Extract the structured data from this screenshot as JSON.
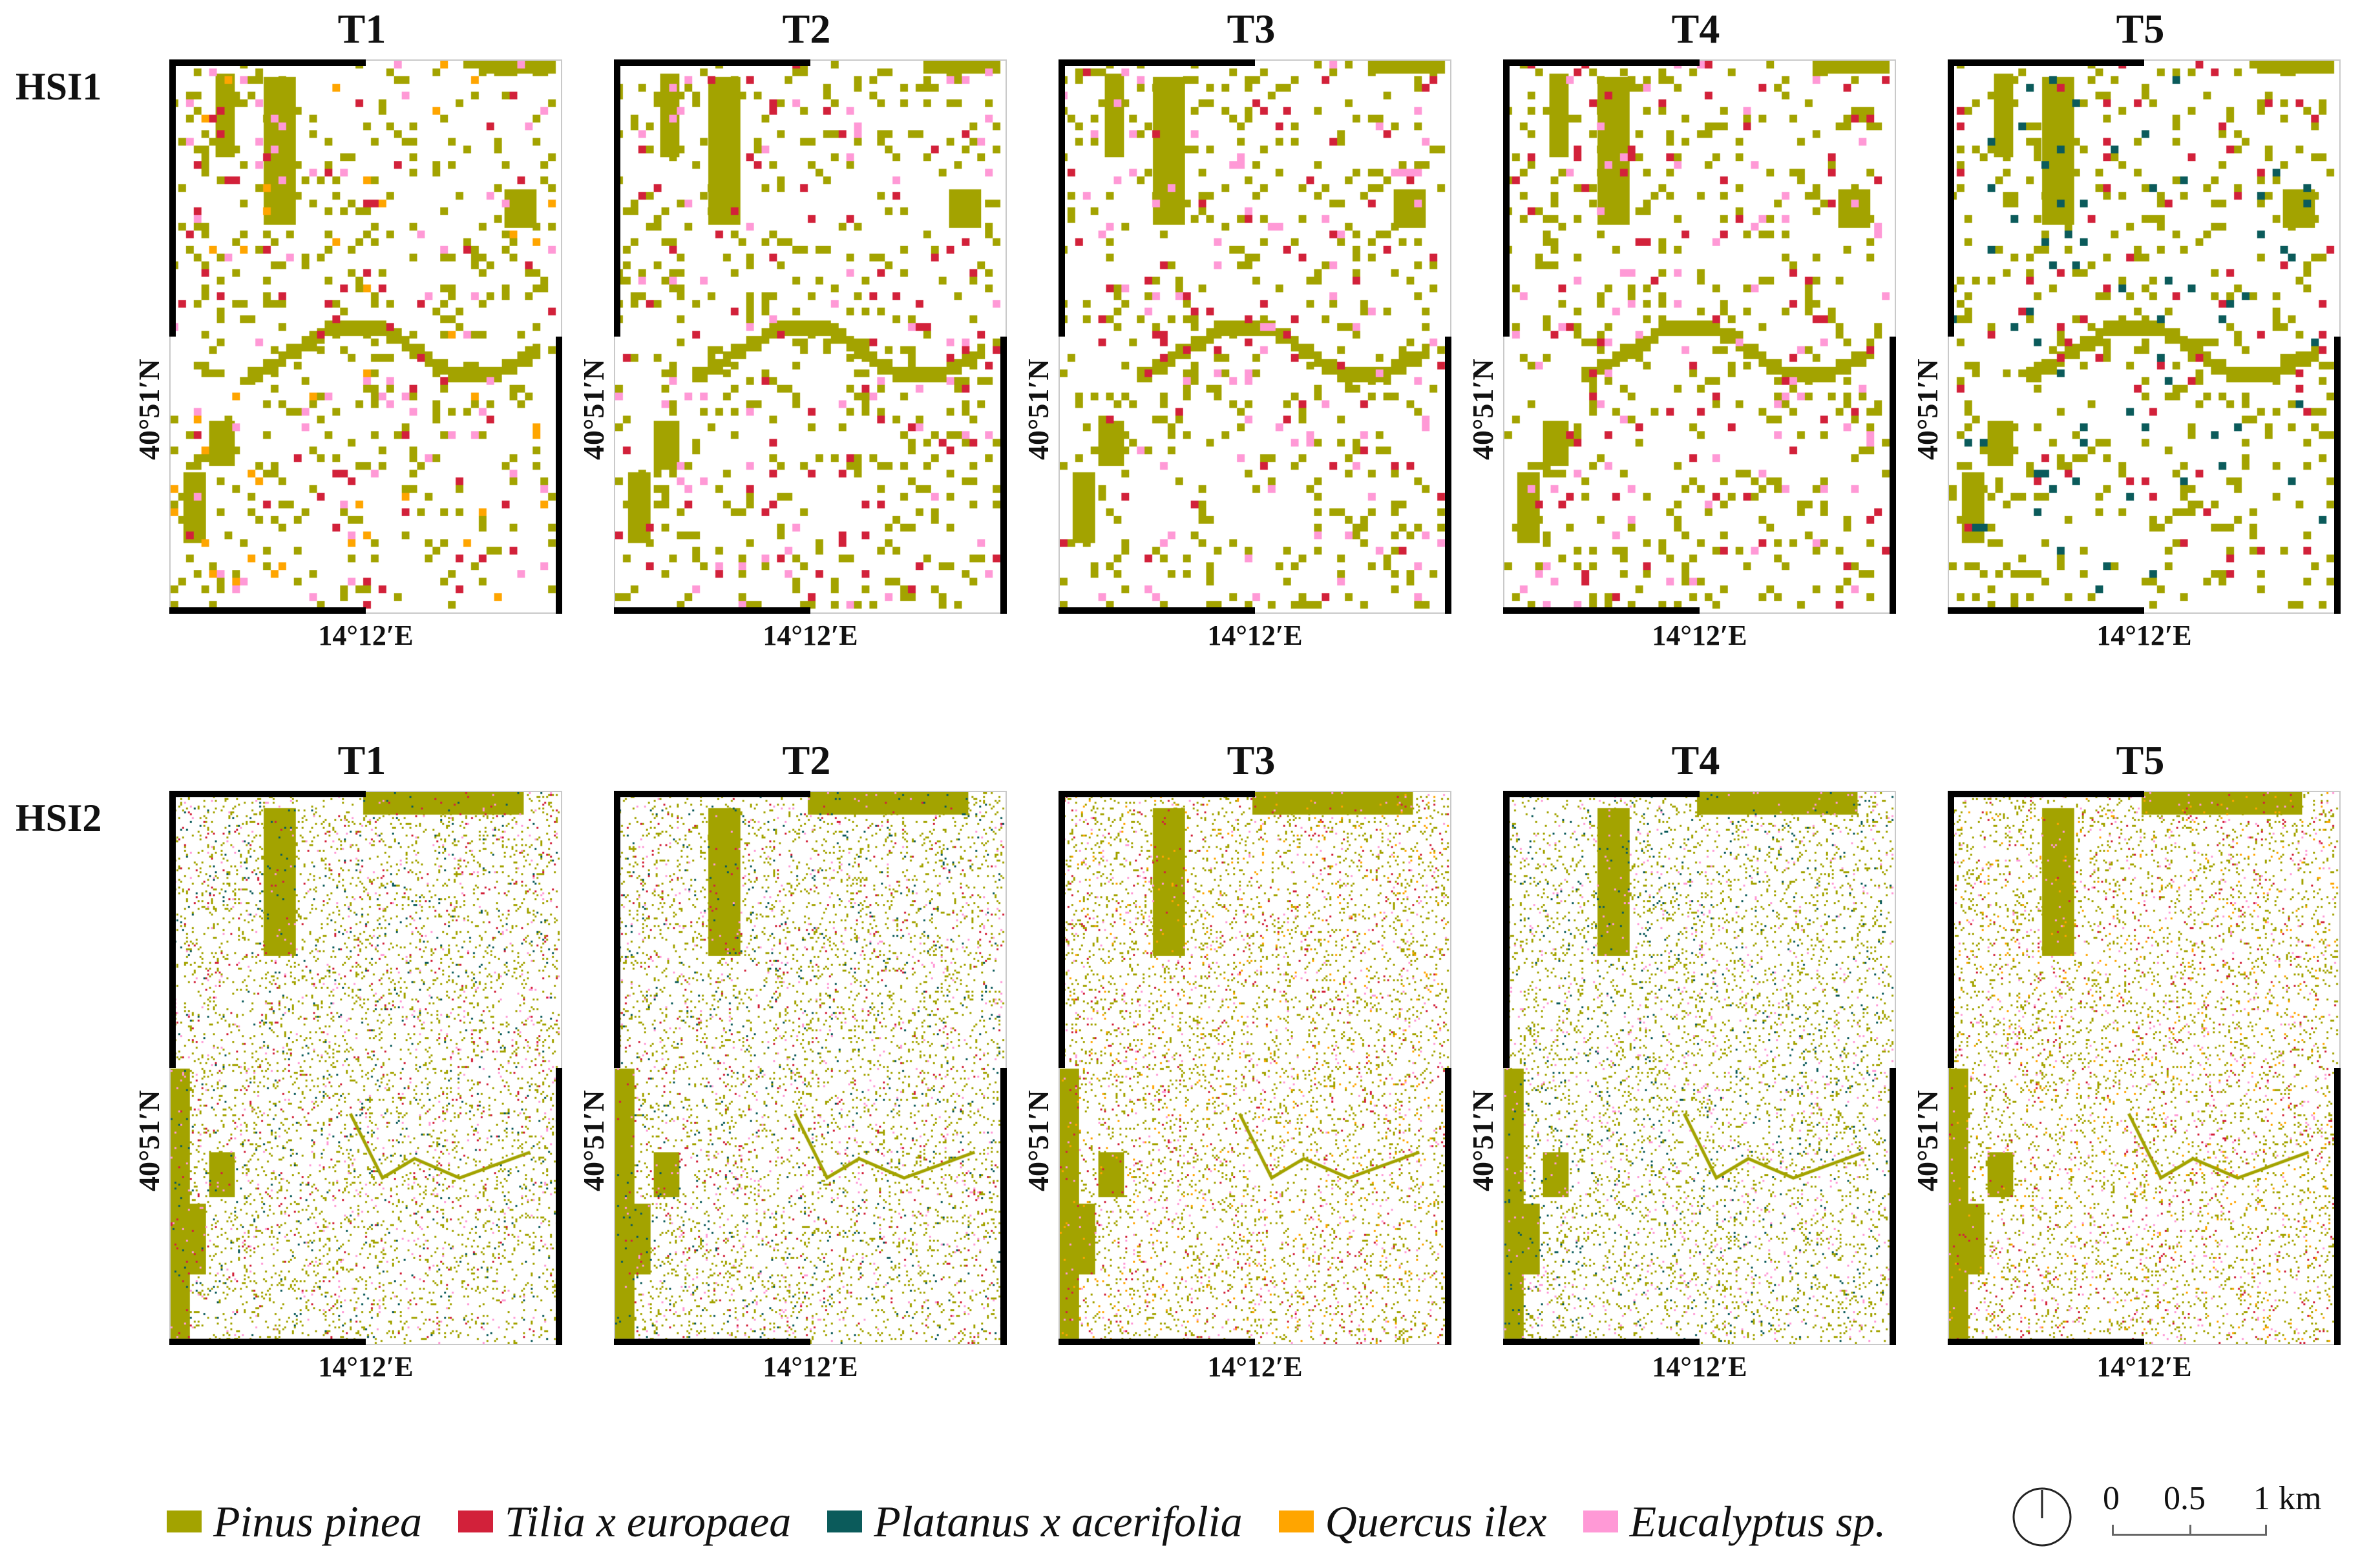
{
  "figure": {
    "rows": [
      {
        "label": "HSI1",
        "style": "coarse"
      },
      {
        "label": "HSI2",
        "style": "fine"
      }
    ],
    "columns": [
      "T1",
      "T2",
      "T3",
      "T4",
      "T5"
    ],
    "latitude_label": "40°51′N",
    "longitude_label": "14°12′E",
    "panels": [
      {
        "row": "HSI1",
        "col": "T1",
        "dominant": [
          "Pinus pinea",
          "Tilia x europaea",
          "Quercus ilex",
          "Eucalyptus sp."
        ]
      },
      {
        "row": "HSI1",
        "col": "T2",
        "dominant": [
          "Pinus pinea",
          "Tilia x europaea",
          "Eucalyptus sp."
        ]
      },
      {
        "row": "HSI1",
        "col": "T3",
        "dominant": [
          "Pinus pinea",
          "Tilia x europaea",
          "Eucalyptus sp."
        ]
      },
      {
        "row": "HSI1",
        "col": "T4",
        "dominant": [
          "Pinus pinea",
          "Tilia x europaea",
          "Eucalyptus sp."
        ]
      },
      {
        "row": "HSI1",
        "col": "T5",
        "dominant": [
          "Pinus pinea",
          "Tilia x europaea",
          "Platanus x acerifolia"
        ]
      },
      {
        "row": "HSI2",
        "col": "T1",
        "dominant": [
          "Pinus pinea",
          "Tilia x europaea",
          "Platanus x acerifolia",
          "Eucalyptus sp."
        ]
      },
      {
        "row": "HSI2",
        "col": "T2",
        "dominant": [
          "Pinus pinea",
          "Tilia x europaea",
          "Platanus x acerifolia",
          "Eucalyptus sp."
        ]
      },
      {
        "row": "HSI2",
        "col": "T3",
        "dominant": [
          "Pinus pinea",
          "Tilia x europaea",
          "Quercus ilex",
          "Eucalyptus sp."
        ]
      },
      {
        "row": "HSI2",
        "col": "T4",
        "dominant": [
          "Pinus pinea",
          "Eucalyptus sp.",
          "Platanus x acerifolia"
        ]
      },
      {
        "row": "HSI2",
        "col": "T5",
        "dominant": [
          "Pinus pinea",
          "Tilia x europaea",
          "Eucalyptus sp.",
          "Quercus ilex"
        ]
      }
    ]
  },
  "legend": [
    {
      "label": "Pinus pinea",
      "color": "#a3a300"
    },
    {
      "label": "Tilia x europaea",
      "color": "#d2213a"
    },
    {
      "label": "Platanus x acerifolia",
      "color": "#0b5b5b"
    },
    {
      "label": "Quercus ilex",
      "color": "#ffa500"
    },
    {
      "label": "Eucalyptus sp.",
      "color": "#ff99d6"
    }
  ],
  "north_arrow": {
    "icon": "north-arrow-icon"
  },
  "scale_bar": {
    "ticks": [
      "0",
      "0.5",
      "1 km"
    ]
  }
}
